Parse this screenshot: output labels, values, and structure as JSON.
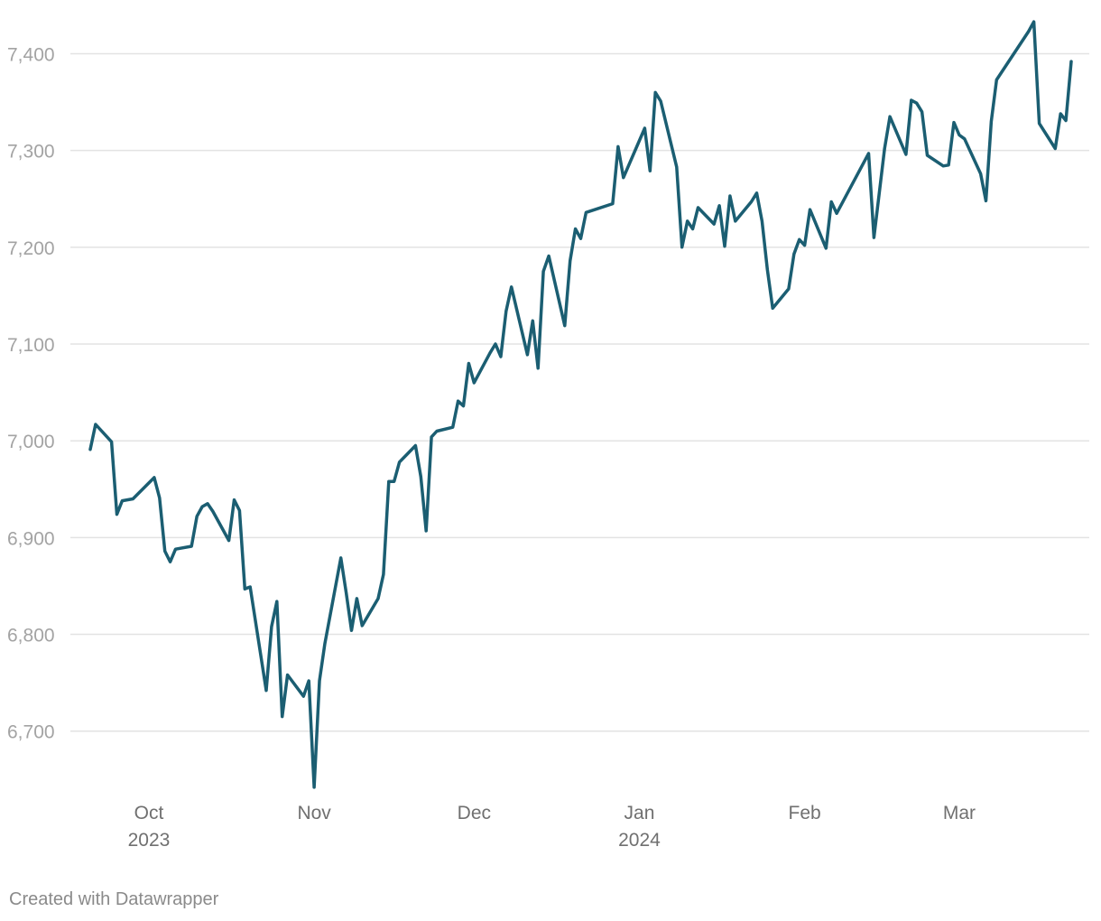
{
  "footer": {
    "credit": "Created with Datawrapper"
  },
  "chart_data": {
    "type": "line",
    "xlabel": "",
    "ylabel": "",
    "ylim": [
      6640,
      7435
    ],
    "xlim": [
      "2023-09-20",
      "2024-03-22"
    ],
    "grid": true,
    "legend": "none",
    "line_color": "#1b5e72",
    "y_ticks": [
      {
        "value": 6700,
        "label": "6,700"
      },
      {
        "value": 6800,
        "label": "6,800"
      },
      {
        "value": 6900,
        "label": "6,900"
      },
      {
        "value": 7000,
        "label": "7,000"
      },
      {
        "value": 7100,
        "label": "7,100"
      },
      {
        "value": 7200,
        "label": "7,200"
      },
      {
        "value": 7300,
        "label": "7,300"
      },
      {
        "value": 7400,
        "label": "7,400"
      }
    ],
    "x_ticks": [
      {
        "date": "2023-10-01",
        "label": "Oct",
        "year": "2023"
      },
      {
        "date": "2023-11-01",
        "label": "Nov",
        "year": ""
      },
      {
        "date": "2023-12-01",
        "label": "Dec",
        "year": ""
      },
      {
        "date": "2024-01-01",
        "label": "Jan",
        "year": "2024"
      },
      {
        "date": "2024-02-01",
        "label": "Feb",
        "year": ""
      },
      {
        "date": "2024-03-01",
        "label": "Mar",
        "year": ""
      }
    ],
    "series": [
      {
        "points": [
          [
            "2023-09-20",
            6991
          ],
          [
            "2023-09-21",
            7017
          ],
          [
            "2023-09-24",
            6999
          ],
          [
            "2023-09-25",
            6924
          ],
          [
            "2023-09-26",
            6938
          ],
          [
            "2023-09-28",
            6940
          ],
          [
            "2023-10-02",
            6962
          ],
          [
            "2023-10-03",
            6941
          ],
          [
            "2023-10-04",
            6886
          ],
          [
            "2023-10-05",
            6875
          ],
          [
            "2023-10-06",
            6888
          ],
          [
            "2023-10-09",
            6891
          ],
          [
            "2023-10-10",
            6922
          ],
          [
            "2023-10-11",
            6932
          ],
          [
            "2023-10-12",
            6935
          ],
          [
            "2023-10-13",
            6927
          ],
          [
            "2023-10-16",
            6897
          ],
          [
            "2023-10-17",
            6939
          ],
          [
            "2023-10-18",
            6928
          ],
          [
            "2023-10-19",
            6847
          ],
          [
            "2023-10-20",
            6849
          ],
          [
            "2023-10-23",
            6742
          ],
          [
            "2023-10-24",
            6808
          ],
          [
            "2023-10-25",
            6834
          ],
          [
            "2023-10-26",
            6715
          ],
          [
            "2023-10-27",
            6758
          ],
          [
            "2023-10-30",
            6736
          ],
          [
            "2023-10-31",
            6752
          ],
          [
            "2023-11-01",
            6642
          ],
          [
            "2023-11-02",
            6752
          ],
          [
            "2023-11-03",
            6790
          ],
          [
            "2023-11-06",
            6879
          ],
          [
            "2023-11-07",
            6843
          ],
          [
            "2023-11-08",
            6804
          ],
          [
            "2023-11-09",
            6837
          ],
          [
            "2023-11-10",
            6809
          ],
          [
            "2023-11-13",
            6837
          ],
          [
            "2023-11-14",
            6862
          ],
          [
            "2023-11-15",
            6958
          ],
          [
            "2023-11-16",
            6958
          ],
          [
            "2023-11-17",
            6978
          ],
          [
            "2023-11-20",
            6995
          ],
          [
            "2023-11-21",
            6963
          ],
          [
            "2023-11-22",
            6907
          ],
          [
            "2023-11-23",
            7004
          ],
          [
            "2023-11-24",
            7010
          ],
          [
            "2023-11-27",
            7014
          ],
          [
            "2023-11-28",
            7041
          ],
          [
            "2023-11-29",
            7036
          ],
          [
            "2023-11-30",
            7080
          ],
          [
            "2023-12-01",
            7060
          ],
          [
            "2023-12-04",
            7091
          ],
          [
            "2023-12-05",
            7100
          ],
          [
            "2023-12-06",
            7087
          ],
          [
            "2023-12-07",
            7134
          ],
          [
            "2023-12-08",
            7159
          ],
          [
            "2023-12-11",
            7089
          ],
          [
            "2023-12-12",
            7124
          ],
          [
            "2023-12-13",
            7075
          ],
          [
            "2023-12-14",
            7175
          ],
          [
            "2023-12-15",
            7191
          ],
          [
            "2023-12-18",
            7119
          ],
          [
            "2023-12-19",
            7186
          ],
          [
            "2023-12-20",
            7219
          ],
          [
            "2023-12-21",
            7209
          ],
          [
            "2023-12-22",
            7236
          ],
          [
            "2023-12-27",
            7245
          ],
          [
            "2023-12-28",
            7304
          ],
          [
            "2023-12-29",
            7272
          ],
          [
            "2024-01-02",
            7323
          ],
          [
            "2024-01-03",
            7279
          ],
          [
            "2024-01-04",
            7360
          ],
          [
            "2024-01-05",
            7351
          ],
          [
            "2024-01-08",
            7283
          ],
          [
            "2024-01-09",
            7200
          ],
          [
            "2024-01-10",
            7227
          ],
          [
            "2024-01-11",
            7219
          ],
          [
            "2024-01-12",
            7241
          ],
          [
            "2024-01-15",
            7224
          ],
          [
            "2024-01-16",
            7243
          ],
          [
            "2024-01-17",
            7201
          ],
          [
            "2024-01-18",
            7253
          ],
          [
            "2024-01-19",
            7227
          ],
          [
            "2024-01-22",
            7247
          ],
          [
            "2024-01-23",
            7256
          ],
          [
            "2024-01-24",
            7227
          ],
          [
            "2024-01-25",
            7177
          ],
          [
            "2024-01-26",
            7137
          ],
          [
            "2024-01-29",
            7157
          ],
          [
            "2024-01-30",
            7193
          ],
          [
            "2024-01-31",
            7208
          ],
          [
            "2024-02-01",
            7202
          ],
          [
            "2024-02-02",
            7239
          ],
          [
            "2024-02-05",
            7199
          ],
          [
            "2024-02-06",
            7247
          ],
          [
            "2024-02-07",
            7235
          ],
          [
            "2024-02-13",
            7297
          ],
          [
            "2024-02-14",
            7210
          ],
          [
            "2024-02-16",
            7302
          ],
          [
            "2024-02-17",
            7335
          ],
          [
            "2024-02-20",
            7296
          ],
          [
            "2024-02-21",
            7352
          ],
          [
            "2024-02-22",
            7349
          ],
          [
            "2024-02-23",
            7340
          ],
          [
            "2024-02-24",
            7295
          ],
          [
            "2024-02-27",
            7284
          ],
          [
            "2024-02-28",
            7285
          ],
          [
            "2024-02-29",
            7329
          ],
          [
            "2024-03-01",
            7316
          ],
          [
            "2024-03-02",
            7312
          ],
          [
            "2024-03-05",
            7276
          ],
          [
            "2024-03-06",
            7248
          ],
          [
            "2024-03-07",
            7330
          ],
          [
            "2024-03-08",
            7373
          ],
          [
            "2024-03-14",
            7423
          ],
          [
            "2024-03-15",
            7433
          ],
          [
            "2024-03-16",
            7328
          ],
          [
            "2024-03-19",
            7302
          ],
          [
            "2024-03-20",
            7338
          ],
          [
            "2024-03-21",
            7331
          ],
          [
            "2024-03-22",
            7392
          ]
        ]
      }
    ]
  }
}
